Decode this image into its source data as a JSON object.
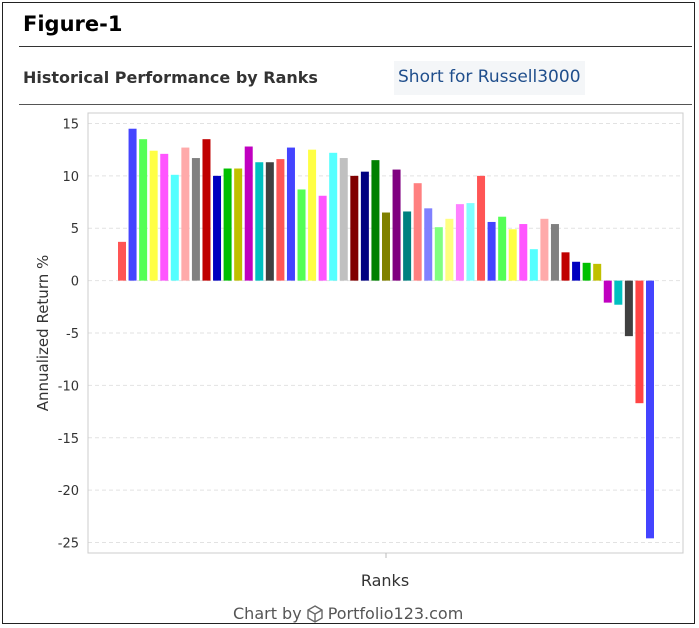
{
  "figure_title": "Figure-1",
  "header": {
    "title": "Historical Performance by Ranks",
    "tab_label": "Short for Russell3000"
  },
  "footer": {
    "prefix": "Chart by",
    "brand": "Portfolio123.com",
    "logo_icon": "cube-icon"
  },
  "chart_data": {
    "type": "bar",
    "xlabel": "Ranks",
    "ylabel": "Annualized Return %",
    "ylim": [
      -26,
      16
    ],
    "yticks": [
      15,
      10,
      5,
      0,
      -5,
      -10,
      -15,
      -20,
      -25
    ],
    "grid": true,
    "values": [
      3.7,
      14.5,
      13.5,
      12.4,
      12.1,
      10.1,
      12.7,
      11.7,
      13.5,
      10.0,
      10.7,
      10.7,
      12.8,
      11.3,
      11.3,
      11.6,
      12.7,
      8.7,
      12.5,
      8.1,
      12.2,
      11.7,
      10.0,
      10.4,
      11.5,
      6.5,
      10.6,
      6.6,
      9.3,
      6.9,
      5.1,
      5.9,
      7.3,
      7.4,
      10.0,
      5.6,
      6.1,
      4.9,
      5.4,
      3.0,
      5.9,
      5.4,
      2.7,
      1.8,
      1.7,
      1.6,
      -2.1,
      -2.3,
      -5.3,
      -11.7,
      -24.6
    ],
    "colors": [
      "#ff5555",
      "#4444ff",
      "#55ff55",
      "#ffff44",
      "#ff55ff",
      "#55ffff",
      "#ffaaaa",
      "#808080",
      "#c00000",
      "#0000c0",
      "#00c000",
      "#c0c000",
      "#c000c0",
      "#00c0c0",
      "#404040",
      "#ff5555",
      "#4444ff",
      "#55ff55",
      "#ffff44",
      "#ff55ff",
      "#55ffff",
      "#c0c0c0",
      "#800000",
      "#000080",
      "#008000",
      "#808000",
      "#800080",
      "#008080",
      "#ff8080",
      "#8080ff",
      "#80ff80",
      "#ffff80",
      "#ff80ff",
      "#80ffff",
      "#ff5555",
      "#4444ff",
      "#55ff55",
      "#ffff44",
      "#ff55ff",
      "#55ffff",
      "#ffaaaa",
      "#808080",
      "#c00000",
      "#0000c0",
      "#00c000",
      "#c0c000",
      "#c000c0",
      "#00c0c0",
      "#404040",
      "#ff4444",
      "#4444ff"
    ]
  }
}
